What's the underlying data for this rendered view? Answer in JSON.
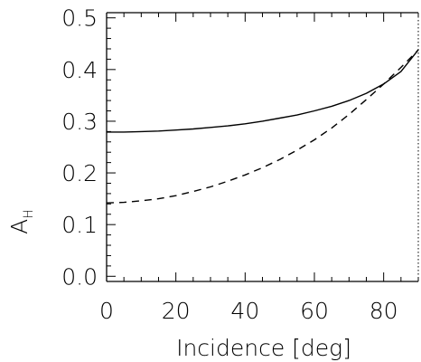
{
  "chart_data": {
    "type": "line",
    "title": "",
    "xlabel": "Incidence [deg]",
    "ylabel_main": "A",
    "ylabel_sub": "H",
    "xlim": [
      0,
      90
    ],
    "ylim": [
      -0.01,
      0.51
    ],
    "x_ticks": [
      0,
      20,
      40,
      60,
      80
    ],
    "x_tick_labels": [
      "0",
      "20",
      "40",
      "60",
      "80"
    ],
    "y_ticks": [
      0.0,
      0.1,
      0.2,
      0.3,
      0.4,
      0.5
    ],
    "y_tick_labels": [
      "0.0",
      "0.1",
      "0.2",
      "0.3",
      "0.4",
      "0.5"
    ],
    "grid": false,
    "legend": "none",
    "series": [
      {
        "style": "solid",
        "color": "#000000",
        "x": [
          0,
          5,
          10,
          15,
          20,
          25,
          30,
          35,
          40,
          45,
          50,
          55,
          60,
          65,
          70,
          75,
          80,
          85,
          90
        ],
        "y": [
          0.279,
          0.279,
          0.28,
          0.281,
          0.283,
          0.285,
          0.288,
          0.291,
          0.295,
          0.3,
          0.306,
          0.312,
          0.32,
          0.329,
          0.34,
          0.354,
          0.372,
          0.396,
          0.438
        ]
      },
      {
        "style": "dashed",
        "color": "#000000",
        "x": [
          0,
          5,
          10,
          15,
          20,
          25,
          30,
          35,
          40,
          45,
          50,
          55,
          60,
          65,
          70,
          75,
          80,
          85,
          90
        ],
        "y": [
          0.142,
          0.143,
          0.146,
          0.15,
          0.156,
          0.164,
          0.173,
          0.184,
          0.196,
          0.21,
          0.226,
          0.244,
          0.264,
          0.287,
          0.313,
          0.342,
          0.372,
          0.404,
          0.438
        ]
      }
    ]
  }
}
